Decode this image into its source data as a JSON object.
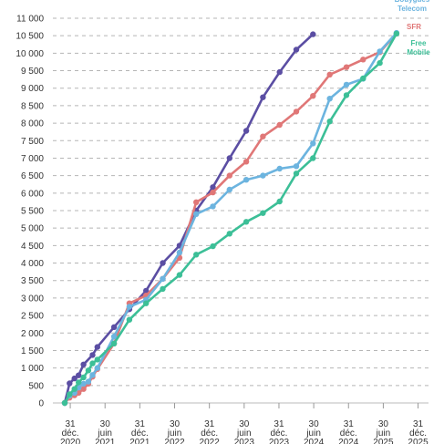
{
  "chart_data": {
    "type": "line",
    "title": "",
    "xlabel": "",
    "ylabel": "",
    "ylim": [
      0,
      11000
    ],
    "yticks": [
      0,
      500,
      1000,
      1500,
      2000,
      2500,
      3000,
      3500,
      4000,
      4500,
      5000,
      5500,
      6000,
      6500,
      7000,
      7500,
      8000,
      8500,
      9000,
      9500,
      10000,
      10500,
      11000
    ],
    "ytick_labels": [
      "0",
      "500",
      "1 000",
      "1 500",
      "2 000",
      "2 500",
      "3 000",
      "3 500",
      "4 000",
      "4 500",
      "5 000",
      "5 500",
      "6 000",
      "6 500",
      "7 000",
      "7 500",
      "8 000",
      "8 500",
      "9 000",
      "9 500",
      "10 000",
      "10 500",
      "11 000"
    ],
    "xlim": [
      2020.75,
      2026.15
    ],
    "xticks": [
      {
        "x": 2021.0,
        "lines": [
          "31",
          "déc.",
          "2020"
        ]
      },
      {
        "x": 2021.5,
        "lines": [
          "30",
          "juin",
          "2021"
        ]
      },
      {
        "x": 2022.0,
        "lines": [
          "31",
          "déc.",
          "2021"
        ]
      },
      {
        "x": 2022.5,
        "lines": [
          "30",
          "juin",
          "2022"
        ]
      },
      {
        "x": 2023.0,
        "lines": [
          "31",
          "déc.",
          "2022"
        ]
      },
      {
        "x": 2023.5,
        "lines": [
          "30",
          "juin",
          "2023"
        ]
      },
      {
        "x": 2024.0,
        "lines": [
          "31",
          "déc.",
          "2023"
        ]
      },
      {
        "x": 2024.5,
        "lines": [
          "30",
          "juin",
          "2024"
        ]
      },
      {
        "x": 2025.0,
        "lines": [
          "31",
          "déc.",
          "2024"
        ]
      },
      {
        "x": 2025.5,
        "lines": [
          "30",
          "juin",
          "2025"
        ]
      },
      {
        "x": 2026.0,
        "lines": [
          "31",
          "déc.",
          "2025"
        ]
      }
    ],
    "grid": true,
    "legend": "direct labels at line ends, top-right",
    "series": [
      {
        "name": "",
        "color": "#5b4ea3",
        "points": [
          [
            2020.92,
            0
          ],
          [
            2020.99,
            560
          ],
          [
            2021.06,
            700
          ],
          [
            2021.12,
            790
          ],
          [
            2021.19,
            1100
          ],
          [
            2021.32,
            1370
          ],
          [
            2021.39,
            1600
          ],
          [
            2021.63,
            2170
          ],
          [
            2021.85,
            2680
          ],
          [
            2022.09,
            3210
          ],
          [
            2022.33,
            4000
          ],
          [
            2022.57,
            4500
          ],
          [
            2022.81,
            5500
          ],
          [
            2023.05,
            6170
          ],
          [
            2023.29,
            7000
          ],
          [
            2023.53,
            7780
          ],
          [
            2023.77,
            8740
          ],
          [
            2024.01,
            9460
          ],
          [
            2024.25,
            10100
          ],
          [
            2024.49,
            10540
          ]
        ]
      },
      {
        "name": "SFR",
        "color": "#e07777",
        "points": [
          [
            2020.92,
            0
          ],
          [
            2020.99,
            150
          ],
          [
            2021.06,
            220
          ],
          [
            2021.12,
            290
          ],
          [
            2021.19,
            400
          ],
          [
            2021.26,
            550
          ],
          [
            2021.32,
            750
          ],
          [
            2021.39,
            970
          ],
          [
            2021.63,
            1700
          ],
          [
            2021.85,
            2850
          ],
          [
            2022.09,
            3070
          ],
          [
            2022.33,
            3550
          ],
          [
            2022.57,
            4150
          ],
          [
            2022.81,
            5740
          ],
          [
            2023.05,
            6020
          ],
          [
            2023.29,
            6500
          ],
          [
            2023.53,
            6900
          ],
          [
            2023.77,
            7620
          ],
          [
            2024.01,
            7950
          ],
          [
            2024.25,
            8330
          ],
          [
            2024.49,
            8780
          ],
          [
            2024.73,
            9390
          ],
          [
            2024.97,
            9600
          ],
          [
            2025.21,
            9820
          ],
          [
            2025.45,
            10030
          ],
          [
            2025.69,
            10560
          ]
        ]
      },
      {
        "name": "Bouygues Telecom",
        "color": "#6cb4df",
        "points": [
          [
            2020.92,
            0
          ],
          [
            2020.99,
            210
          ],
          [
            2021.06,
            290
          ],
          [
            2021.12,
            440
          ],
          [
            2021.19,
            550
          ],
          [
            2021.26,
            610
          ],
          [
            2021.32,
            800
          ],
          [
            2021.39,
            1000
          ],
          [
            2021.63,
            1900
          ],
          [
            2021.85,
            2750
          ],
          [
            2022.09,
            2950
          ],
          [
            2022.33,
            3550
          ],
          [
            2022.57,
            4300
          ],
          [
            2022.81,
            5400
          ],
          [
            2023.05,
            5620
          ],
          [
            2023.29,
            6100
          ],
          [
            2023.53,
            6380
          ],
          [
            2023.77,
            6500
          ],
          [
            2024.01,
            6700
          ],
          [
            2024.25,
            6770
          ],
          [
            2024.49,
            7420
          ],
          [
            2024.73,
            8700
          ],
          [
            2024.97,
            9100
          ],
          [
            2025.21,
            9270
          ],
          [
            2025.45,
            10050
          ],
          [
            2025.69,
            10580
          ]
        ]
      },
      {
        "name": "Free Mobile",
        "color": "#3cbf97",
        "points": [
          [
            2020.92,
            0
          ],
          [
            2020.99,
            250
          ],
          [
            2021.06,
            400
          ],
          [
            2021.12,
            590
          ],
          [
            2021.19,
            730
          ],
          [
            2021.26,
            930
          ],
          [
            2021.32,
            1130
          ],
          [
            2021.39,
            1240
          ],
          [
            2021.63,
            1700
          ],
          [
            2021.85,
            2380
          ],
          [
            2022.09,
            2850
          ],
          [
            2022.33,
            3260
          ],
          [
            2022.57,
            3660
          ],
          [
            2022.81,
            4240
          ],
          [
            2023.05,
            4480
          ],
          [
            2023.29,
            4840
          ],
          [
            2023.53,
            5180
          ],
          [
            2023.77,
            5430
          ],
          [
            2024.01,
            5760
          ],
          [
            2024.25,
            6560
          ],
          [
            2024.49,
            7000
          ],
          [
            2024.73,
            8050
          ],
          [
            2024.97,
            8800
          ],
          [
            2025.21,
            9280
          ],
          [
            2025.45,
            9720
          ],
          [
            2025.69,
            10560
          ]
        ]
      }
    ],
    "direct_labels": [
      {
        "series": "Bouygues Telecom",
        "lines": [
          "Bouygues",
          "Telecom"
        ],
        "color": "#6cb4df"
      },
      {
        "series": "SFR",
        "lines": [
          "SFR"
        ],
        "color": "#e07777"
      },
      {
        "series": "Free Mobile",
        "lines": [
          "Free",
          "Mobile"
        ],
        "color": "#3cbf97"
      }
    ]
  }
}
